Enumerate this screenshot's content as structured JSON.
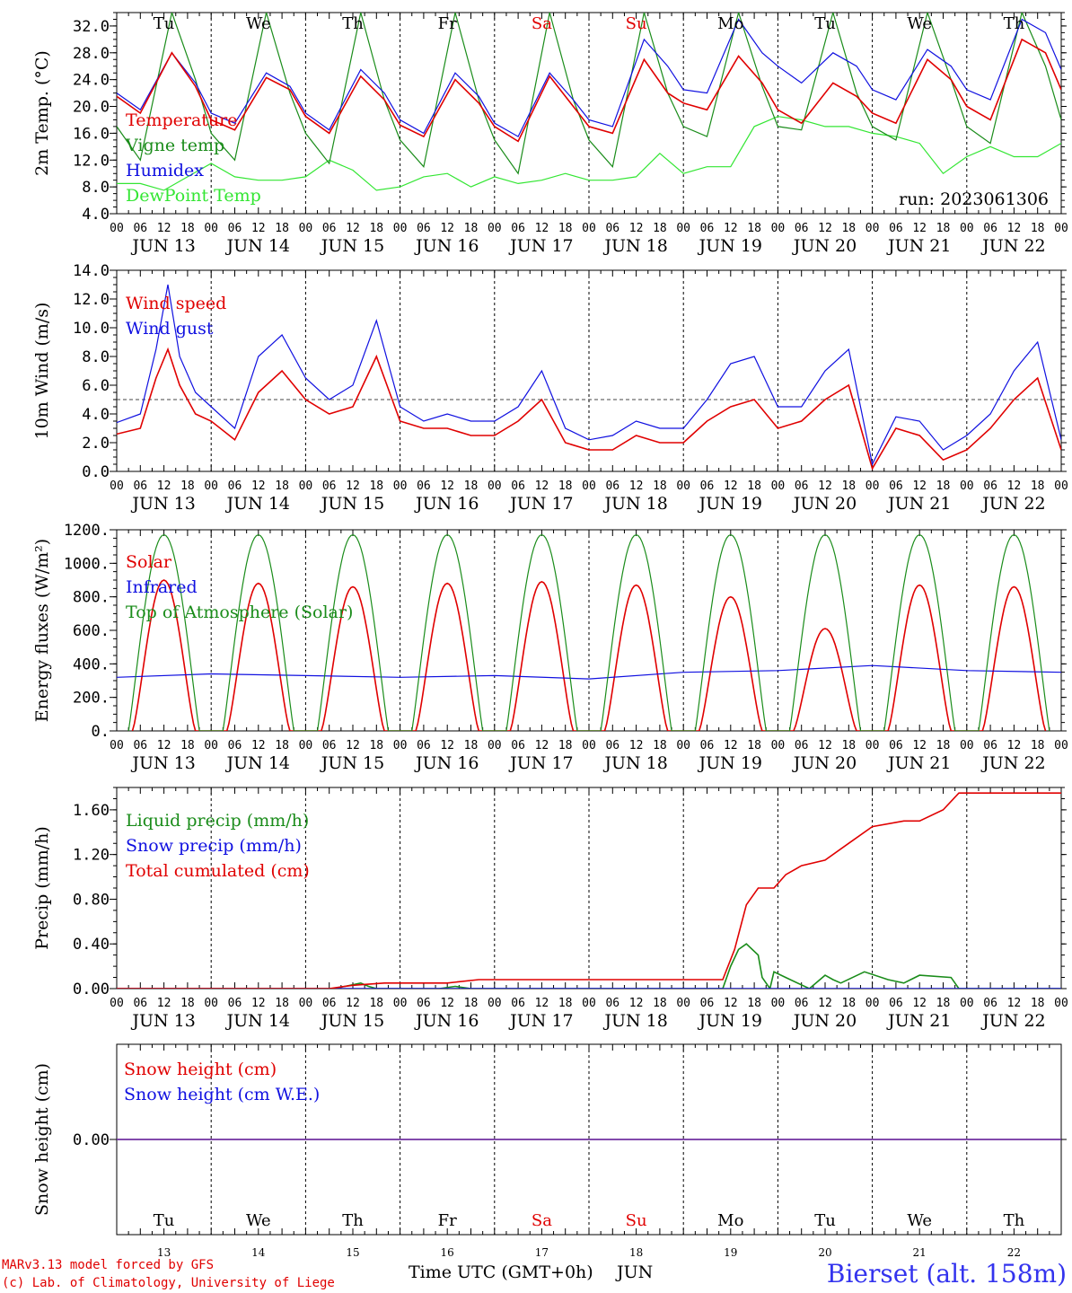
{
  "run_label": "run: 2023061306",
  "colors": {
    "red": "#e00000",
    "green": "#1a8c1a",
    "blue": "#1010e0",
    "lightgreen": "#33e633",
    "purple": "#7030a0",
    "station": "#3333ee"
  },
  "days": {
    "weekdays": [
      "Tu",
      "We",
      "Th",
      "Fr",
      "Sa",
      "Su",
      "Mo",
      "Tu",
      "We",
      "Th"
    ],
    "weekend_flags": [
      false,
      false,
      false,
      false,
      true,
      true,
      false,
      false,
      false,
      false
    ],
    "dates": [
      "JUN 13",
      "JUN 14",
      "JUN 15",
      "JUN 16",
      "JUN 17",
      "JUN 18",
      "JUN 19",
      "JUN 20",
      "JUN 21",
      "JUN 22"
    ],
    "day_numbers": [
      "13",
      "14",
      "15",
      "16",
      "17",
      "18",
      "19",
      "20",
      "21",
      "22"
    ],
    "hour_labels": [
      "00",
      "06",
      "12",
      "18"
    ],
    "final_hour_label": "00"
  },
  "chart_data": [
    {
      "type": "line",
      "ylabel": "2m Temp. (°C)",
      "ylim": [
        4,
        34
      ],
      "yticks": [
        "32.0",
        "28.0",
        "24.0",
        "20.0",
        "16.0",
        "12.0",
        "8.0",
        "4.0"
      ],
      "x_unit": "hours since 2023-06-13 00 UTC",
      "xlim": [
        0,
        240
      ],
      "legend_position": "top-left",
      "series": [
        {
          "name": "Temperature",
          "color": "red",
          "x": [
            0,
            6,
            14,
            20,
            24,
            30,
            38,
            44,
            48,
            54,
            62,
            68,
            72,
            78,
            86,
            92,
            96,
            102,
            110,
            116,
            120,
            126,
            134,
            140,
            144,
            150,
            158,
            164,
            168,
            174,
            182,
            188,
            192,
            198,
            206,
            212,
            216,
            222,
            230,
            236,
            240
          ],
          "values": [
            21.5,
            19.0,
            28,
            23,
            18,
            16.5,
            24.3,
            22.5,
            18.5,
            16,
            24.5,
            21,
            17.2,
            15.5,
            24,
            20.5,
            17,
            14.8,
            24.5,
            20,
            17,
            16,
            27,
            22,
            20.5,
            19.5,
            27.5,
            23.5,
            19.5,
            17.5,
            23.5,
            21.5,
            19,
            17.5,
            27,
            24,
            20,
            18,
            30,
            28,
            22.5
          ]
        },
        {
          "name": "Vigne temp",
          "color": "green",
          "x": [
            0,
            6,
            14,
            20,
            24,
            30,
            38,
            44,
            48,
            54,
            62,
            68,
            72,
            78,
            86,
            92,
            96,
            102,
            110,
            116,
            120,
            126,
            134,
            140,
            144,
            150,
            158,
            164,
            168,
            174,
            182,
            188,
            192,
            198,
            206,
            212,
            216,
            222,
            230,
            236,
            240
          ],
          "values": [
            17,
            12,
            34,
            24,
            16,
            12,
            34,
            22,
            16,
            11.5,
            34,
            21,
            15,
            11,
            34,
            21,
            15,
            10,
            34,
            21,
            15,
            11,
            34,
            22,
            17,
            15.5,
            34,
            23,
            17,
            16.5,
            34,
            22,
            17,
            15,
            34,
            24,
            17,
            14.5,
            34,
            26,
            18
          ]
        },
        {
          "name": "Humidex",
          "color": "blue",
          "x": [
            0,
            6,
            14,
            20,
            24,
            30,
            38,
            44,
            48,
            54,
            62,
            68,
            72,
            78,
            86,
            92,
            96,
            102,
            110,
            116,
            120,
            126,
            134,
            140,
            144,
            150,
            158,
            164,
            168,
            174,
            182,
            188,
            192,
            198,
            206,
            212,
            216,
            222,
            230,
            236,
            240
          ],
          "values": [
            22,
            19.5,
            28,
            23.5,
            19,
            17.5,
            25,
            23,
            19,
            16.5,
            25.5,
            22,
            18,
            16,
            25,
            21.5,
            17.5,
            15.5,
            25,
            21,
            18,
            17,
            30,
            26,
            22.5,
            22,
            33,
            28,
            26,
            23.5,
            28,
            26,
            22.5,
            21,
            28.5,
            26,
            22.5,
            21,
            33,
            31,
            25.5
          ]
        },
        {
          "name": "DewPoint Temp",
          "color": "lightgreen",
          "x": [
            0,
            6,
            12,
            18,
            24,
            30,
            36,
            42,
            48,
            54,
            60,
            66,
            72,
            78,
            84,
            90,
            96,
            102,
            108,
            114,
            120,
            126,
            132,
            138,
            144,
            150,
            156,
            162,
            168,
            174,
            180,
            186,
            192,
            198,
            204,
            210,
            216,
            222,
            228,
            234,
            240
          ],
          "values": [
            8.5,
            8.5,
            7.5,
            9.5,
            11.5,
            9.5,
            9,
            9,
            9.5,
            12,
            10.5,
            7.5,
            8,
            9.5,
            10,
            8,
            9.5,
            8.5,
            9,
            10,
            9,
            9,
            9.5,
            13,
            10,
            11,
            11,
            17,
            18.5,
            18,
            17,
            17,
            16,
            15.5,
            14.5,
            10,
            12.5,
            14,
            12.5,
            12.5,
            14.5
          ]
        }
      ]
    },
    {
      "type": "line",
      "ylabel": "10m Wind (m/s)",
      "ylim": [
        0,
        14
      ],
      "yticks": [
        "14.0",
        "12.0",
        "10.0",
        "8.0",
        "6.0",
        "4.0",
        "2.0",
        "0.0"
      ],
      "reference_line": 5,
      "xlim": [
        0,
        240
      ],
      "legend_position": "top-left",
      "series": [
        {
          "name": "Wind speed",
          "color": "red",
          "x": [
            0,
            6,
            10,
            13,
            16,
            20,
            24,
            30,
            36,
            42,
            48,
            54,
            60,
            66,
            72,
            78,
            84,
            90,
            96,
            102,
            108,
            114,
            120,
            126,
            132,
            138,
            144,
            150,
            156,
            162,
            168,
            174,
            180,
            186,
            192,
            198,
            204,
            210,
            216,
            222,
            228,
            234,
            240
          ],
          "values": [
            2.6,
            3.0,
            6.5,
            8.5,
            6.0,
            4.0,
            3.5,
            2.2,
            5.5,
            7.0,
            5.0,
            4.0,
            4.5,
            8.0,
            3.5,
            3.0,
            3.0,
            2.5,
            2.5,
            3.5,
            5.0,
            2.0,
            1.5,
            1.5,
            2.5,
            2.0,
            2.0,
            3.5,
            4.5,
            5.0,
            3.0,
            3.5,
            5.0,
            6.0,
            0.2,
            3.0,
            2.5,
            0.8,
            1.5,
            3.0,
            5.0,
            6.5,
            1.5
          ]
        },
        {
          "name": "Wind gust",
          "color": "blue",
          "x": [
            0,
            6,
            10,
            13,
            16,
            20,
            24,
            30,
            36,
            42,
            48,
            54,
            60,
            66,
            72,
            78,
            84,
            90,
            96,
            102,
            108,
            114,
            120,
            126,
            132,
            138,
            144,
            150,
            156,
            162,
            168,
            174,
            180,
            186,
            192,
            198,
            204,
            210,
            216,
            222,
            228,
            234,
            240
          ],
          "values": [
            3.4,
            4.0,
            8.5,
            13.0,
            8.0,
            5.5,
            4.5,
            3.0,
            8.0,
            9.5,
            6.5,
            5.0,
            6.0,
            10.5,
            4.5,
            3.5,
            4.0,
            3.5,
            3.5,
            4.5,
            7.0,
            3.0,
            2.2,
            2.5,
            3.5,
            3.0,
            3.0,
            5.0,
            7.5,
            8.0,
            4.5,
            4.5,
            7.0,
            8.5,
            0.5,
            3.8,
            3.5,
            1.5,
            2.5,
            4.0,
            7.0,
            9.0,
            2.2
          ]
        }
      ]
    },
    {
      "type": "line",
      "ylabel": "Energy fluxes (W/m²)",
      "ylim": [
        0,
        1200
      ],
      "yticks": [
        "1200.",
        "1000.",
        "800.",
        "600.",
        "400.",
        "200.",
        "0."
      ],
      "xlim": [
        0,
        240
      ],
      "legend_position": "top-left",
      "series": [
        {
          "name": "Solar",
          "color": "red",
          "peaks": [
            900,
            880,
            860,
            880,
            890,
            870,
            800,
            610,
            870,
            860
          ]
        },
        {
          "name": "Infrared",
          "color": "blue",
          "x": [
            0,
            24,
            48,
            72,
            96,
            120,
            144,
            168,
            192,
            216,
            240
          ],
          "values": [
            320,
            340,
            330,
            320,
            330,
            310,
            350,
            360,
            390,
            360,
            350
          ]
        },
        {
          "name": "Top of Atmosphere (Solar)",
          "color": "green",
          "peaks": [
            1170,
            1170,
            1170,
            1170,
            1170,
            1170,
            1170,
            1170,
            1170,
            1170
          ]
        }
      ]
    },
    {
      "type": "line",
      "ylabel": "Precip (mm/h)",
      "ylim": [
        0,
        1.8
      ],
      "yticks": [
        "1.60",
        "1.20",
        "0.80",
        "0.40",
        "0.00"
      ],
      "xlim": [
        0,
        240
      ],
      "legend_position": "top-left",
      "series": [
        {
          "name": "Liquid precip (mm/h)",
          "color": "green",
          "x": [
            0,
            55,
            58,
            62,
            64,
            66,
            82,
            86,
            90,
            154,
            156,
            158,
            160,
            163,
            164,
            166,
            167,
            170,
            176,
            180,
            182,
            184,
            190,
            196,
            200,
            204,
            212,
            214,
            238,
            240
          ],
          "values": [
            0,
            0,
            0.02,
            0.05,
            0.02,
            0,
            0,
            0.02,
            0,
            0,
            0.2,
            0.35,
            0.4,
            0.3,
            0.1,
            0,
            0.15,
            0.1,
            0,
            0.12,
            0.08,
            0.05,
            0.15,
            0.08,
            0.05,
            0.12,
            0.1,
            0,
            0,
            0
          ]
        },
        {
          "name": "Snow precip (mm/h)",
          "color": "blue",
          "x": [
            0,
            240
          ],
          "values": [
            0,
            0
          ]
        },
        {
          "name": "Total cumulated (cm)",
          "color": "red",
          "x": [
            0,
            54,
            60,
            68,
            84,
            92,
            120,
            154,
            157,
            160,
            163,
            167,
            170,
            174,
            180,
            186,
            192,
            200,
            204,
            210,
            214,
            240
          ],
          "values": [
            0,
            0,
            0.03,
            0.05,
            0.05,
            0.08,
            0.08,
            0.08,
            0.35,
            0.75,
            0.9,
            0.9,
            1.02,
            1.1,
            1.15,
            1.3,
            1.45,
            1.5,
            1.5,
            1.6,
            1.75,
            1.75
          ]
        }
      ]
    },
    {
      "type": "line",
      "ylabel": "Snow height (cm)",
      "yticks": [
        "0.00"
      ],
      "xlim": [
        0,
        240
      ],
      "legend_position": "top-left",
      "series": [
        {
          "name": "Snow height (cm)",
          "color": "red",
          "x": [
            0,
            240
          ],
          "values": [
            0,
            0
          ]
        },
        {
          "name": "Snow height (cm W.E.)",
          "color": "blue",
          "x": [
            0,
            240
          ],
          "values": [
            0,
            0
          ]
        }
      ]
    }
  ],
  "footer": {
    "model_line": "MARv3.13 model forced by GFS",
    "credit_line": "(c) Lab. of Climatology, University of Liege",
    "xlabel": "Time UTC (GMT+0h)",
    "month": "JUN",
    "station": "Bierset (alt. 158m)"
  }
}
